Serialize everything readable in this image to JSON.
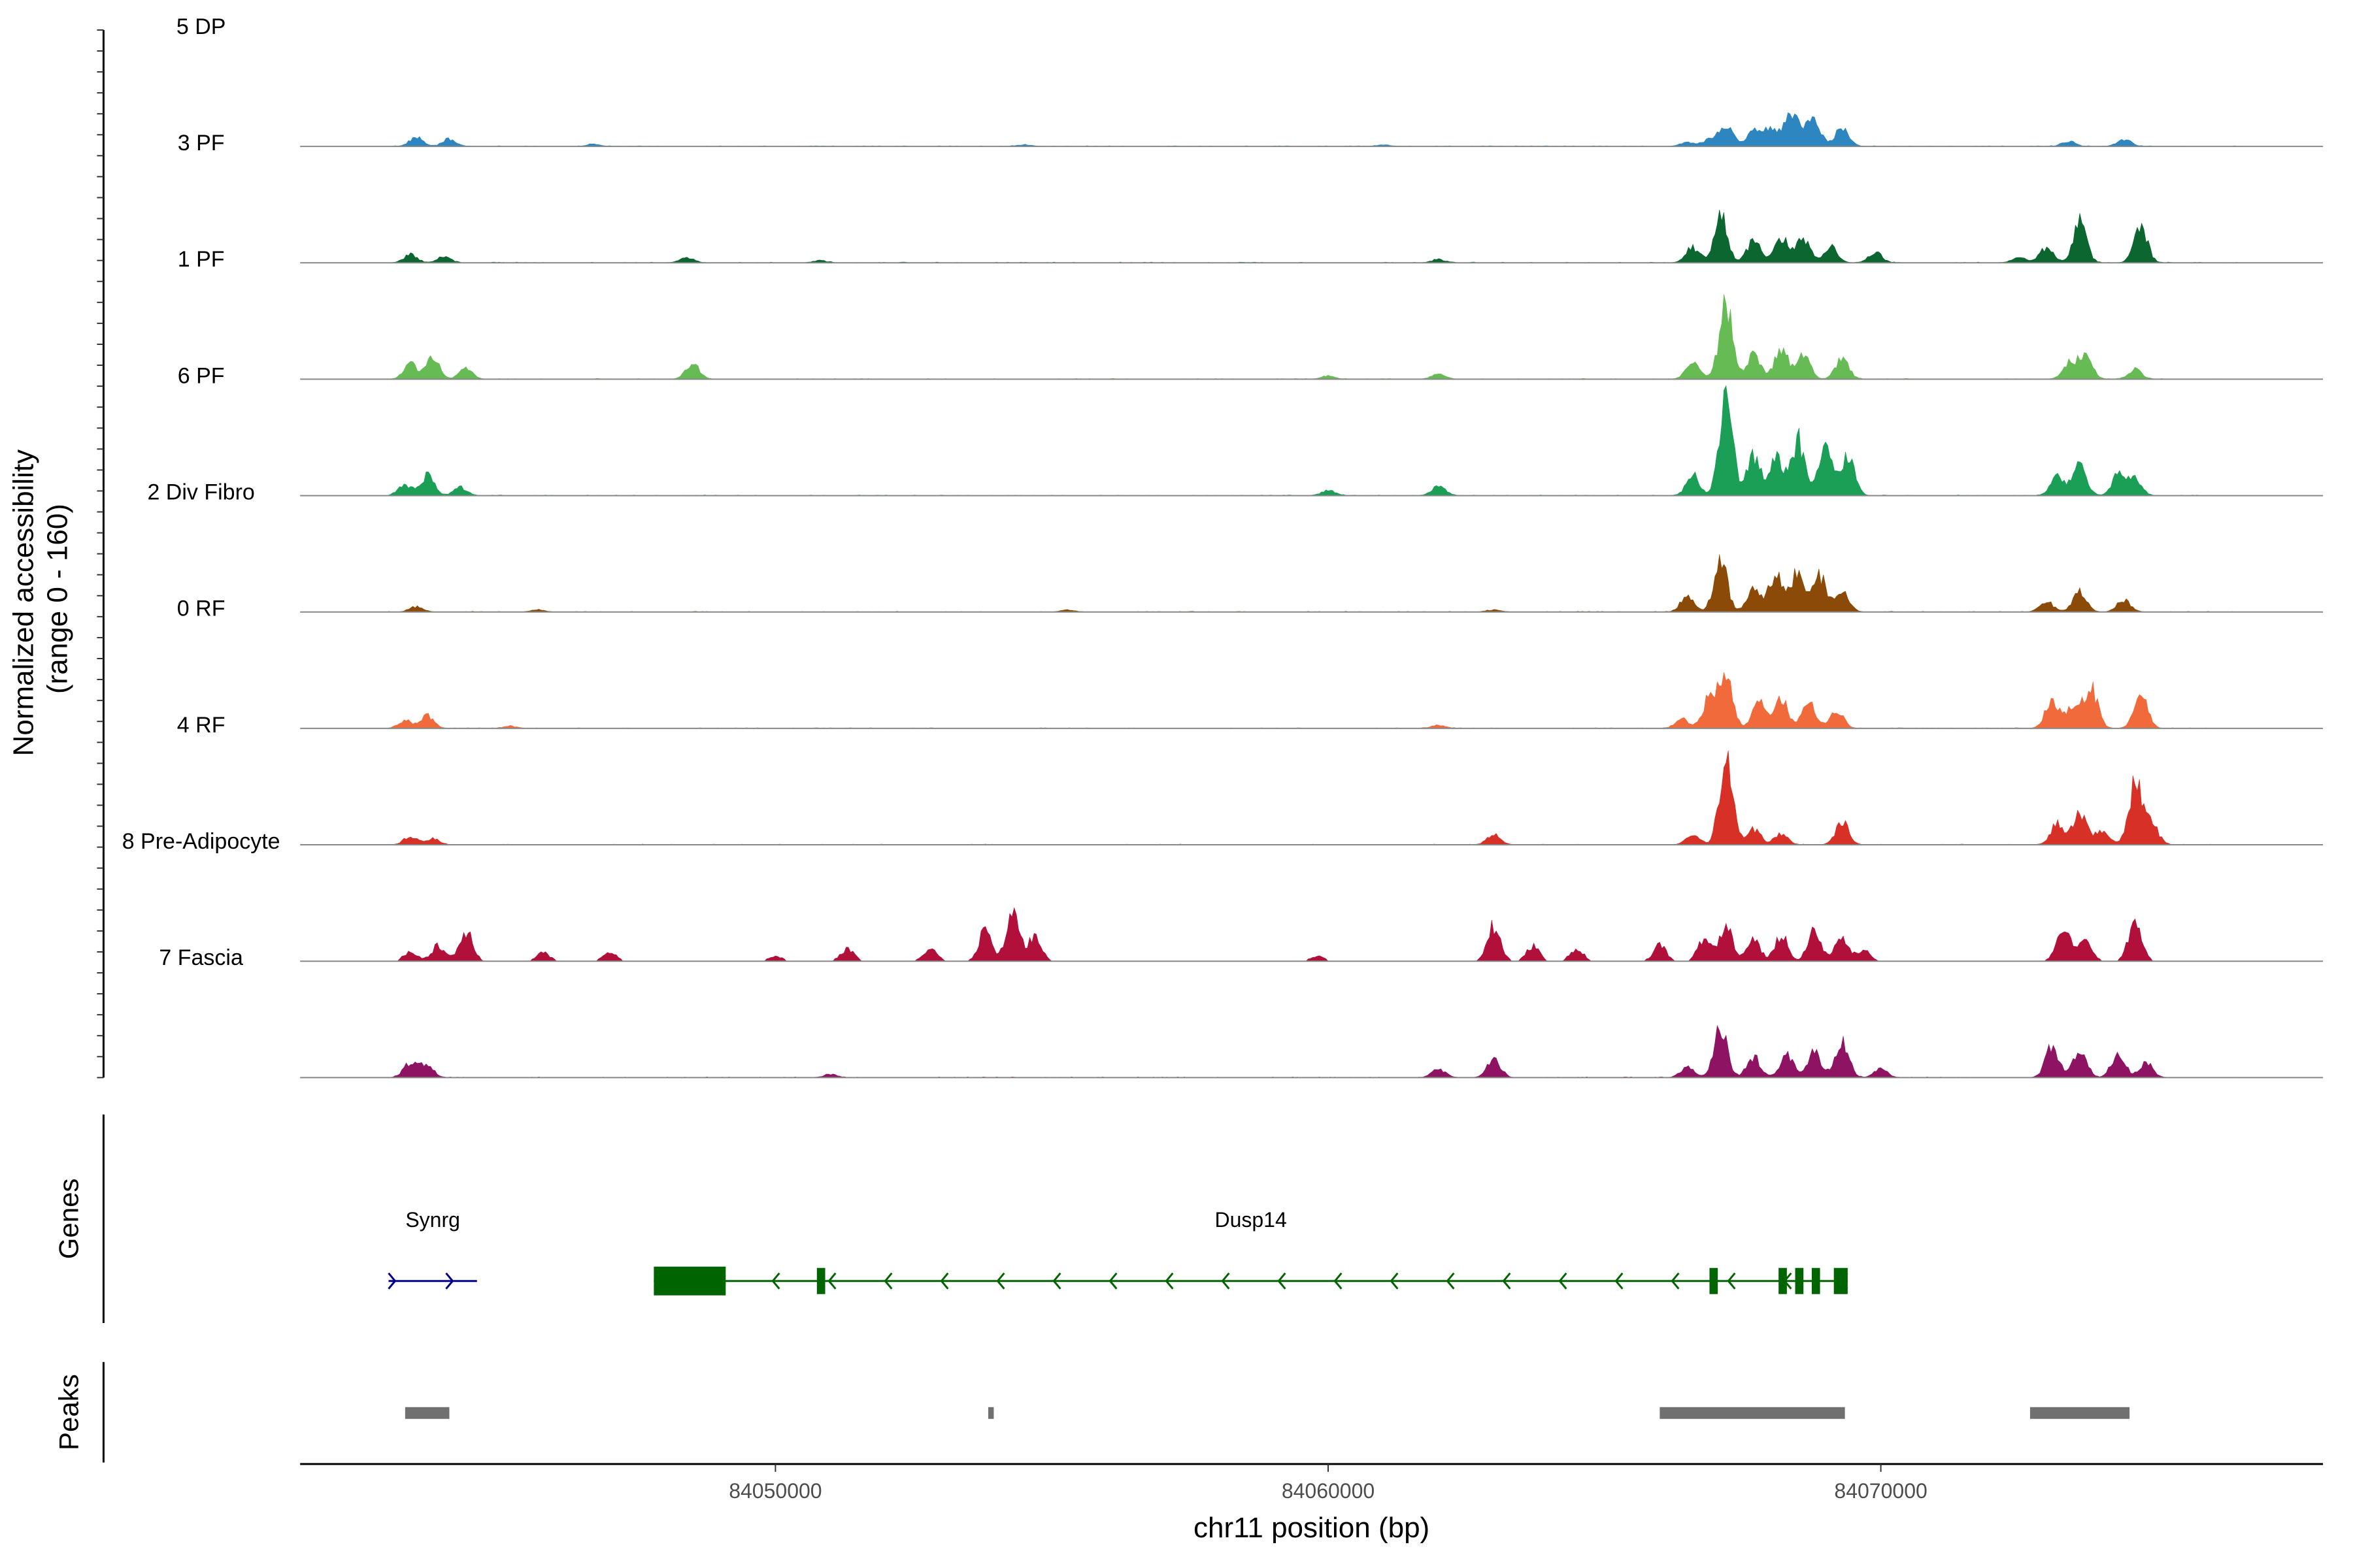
{
  "chart_data": {
    "type": "area",
    "title": "",
    "coverage": {
      "ylabel_line1": "Normalized accessibility",
      "ylabel_line2": "(range 0 - 160)",
      "ylim": [
        0,
        160
      ],
      "tracks": [
        {
          "name": "5 DP",
          "color": "#2E86C1",
          "peaks": [
            [
              84043500,
              9
            ],
            [
              84044100,
              7
            ],
            [
              84046700,
              2
            ],
            [
              84054500,
              1.5
            ],
            [
              84061000,
              1.5
            ],
            [
              84066500,
              4
            ],
            [
              84066900,
              7
            ],
            [
              84067200,
              22
            ],
            [
              84067700,
              14
            ],
            [
              84068000,
              18
            ],
            [
              84068300,
              20
            ],
            [
              84068500,
              22
            ],
            [
              84068800,
              25
            ],
            [
              84069300,
              20
            ],
            [
              84073400,
              5
            ],
            [
              84074400,
              7
            ]
          ]
        },
        {
          "name": "3 PF",
          "color": "#0B6630",
          "peaks": [
            [
              84043400,
              8
            ],
            [
              84044000,
              6
            ],
            [
              84048400,
              5
            ],
            [
              84050800,
              2
            ],
            [
              84062000,
              3
            ],
            [
              84066600,
              15
            ],
            [
              84067100,
              45
            ],
            [
              84067700,
              22
            ],
            [
              84068200,
              25
            ],
            [
              84068600,
              24
            ],
            [
              84069100,
              15
            ],
            [
              84069900,
              10
            ],
            [
              84072500,
              5
            ],
            [
              84073000,
              15
            ],
            [
              84073600,
              40
            ],
            [
              84074700,
              36
            ]
          ]
        },
        {
          "name": "1 PF",
          "color": "#66BB55",
          "peaks": [
            [
              84043400,
              15
            ],
            [
              84043800,
              22
            ],
            [
              84044400,
              10
            ],
            [
              84048500,
              15
            ],
            [
              84060000,
              3
            ],
            [
              84062000,
              5
            ],
            [
              84066600,
              18
            ],
            [
              84067200,
              75
            ],
            [
              84067700,
              25
            ],
            [
              84068200,
              30
            ],
            [
              84068600,
              25
            ],
            [
              84069300,
              20
            ],
            [
              84073400,
              15
            ],
            [
              84073700,
              25
            ],
            [
              84074600,
              10
            ]
          ]
        },
        {
          "name": "6 PF",
          "color": "#1B9E55",
          "peaks": [
            [
              84043300,
              10
            ],
            [
              84043700,
              20
            ],
            [
              84044300,
              8
            ],
            [
              84060000,
              5
            ],
            [
              84062000,
              10
            ],
            [
              84066600,
              20
            ],
            [
              84067200,
              98
            ],
            [
              84067700,
              40
            ],
            [
              84068100,
              40
            ],
            [
              84068500,
              55
            ],
            [
              84069000,
              45
            ],
            [
              84069400,
              40
            ],
            [
              84073200,
              20
            ],
            [
              84073600,
              32
            ],
            [
              84074300,
              20
            ],
            [
              84074600,
              15
            ]
          ]
        },
        {
          "name": "2 Div Fibro",
          "color": "#8B4A08",
          "peaks": [
            [
              84043500,
              5
            ],
            [
              84045700,
              2
            ],
            [
              84055300,
              2
            ],
            [
              84063000,
              2
            ],
            [
              84066500,
              15
            ],
            [
              84067100,
              50
            ],
            [
              84067700,
              22
            ],
            [
              84068100,
              38
            ],
            [
              84068500,
              42
            ],
            [
              84068900,
              35
            ],
            [
              84069300,
              20
            ],
            [
              84073000,
              10
            ],
            [
              84073600,
              20
            ],
            [
              84074400,
              12
            ]
          ]
        },
        {
          "name": "0 RF",
          "color": "#F06A3C",
          "peaks": [
            [
              84043300,
              8
            ],
            [
              84043700,
              12
            ],
            [
              84045200,
              2
            ],
            [
              84062000,
              3
            ],
            [
              84066400,
              10
            ],
            [
              84066900,
              30
            ],
            [
              84067200,
              55
            ],
            [
              84067800,
              25
            ],
            [
              84068200,
              28
            ],
            [
              84068700,
              25
            ],
            [
              84069200,
              18
            ],
            [
              84073100,
              30
            ],
            [
              84073500,
              25
            ],
            [
              84073800,
              40
            ],
            [
              84074700,
              35
            ]
          ]
        },
        {
          "name": "4 RF",
          "color": "#D73027",
          "peaks": [
            [
              84043400,
              8
            ],
            [
              84043800,
              6
            ],
            [
              84063000,
              10
            ],
            [
              84066600,
              10
            ],
            [
              84067200,
              85
            ],
            [
              84067700,
              15
            ],
            [
              84068200,
              10
            ],
            [
              84069300,
              22
            ],
            [
              84073200,
              22
            ],
            [
              84073600,
              30
            ],
            [
              84074000,
              15
            ],
            [
              84074600,
              60
            ],
            [
              84074900,
              20
            ]
          ]
        },
        {
          "name": "8 Pre-Adipocyte",
          "color": "#B0103A",
          "peaks": [
            [
              84043400,
              10
            ],
            [
              84043900,
              15
            ],
            [
              84044400,
              30
            ],
            [
              84045800,
              8
            ],
            [
              84047000,
              10
            ],
            [
              84050000,
              5
            ],
            [
              84051300,
              12
            ],
            [
              84052800,
              12
            ],
            [
              84053800,
              30
            ],
            [
              84054300,
              45
            ],
            [
              84054700,
              25
            ],
            [
              84059800,
              5
            ],
            [
              84063000,
              35
            ],
            [
              84063700,
              15
            ],
            [
              84064500,
              12
            ],
            [
              84066000,
              15
            ],
            [
              84066800,
              20
            ],
            [
              84067200,
              35
            ],
            [
              84067700,
              20
            ],
            [
              84068200,
              25
            ],
            [
              84068800,
              30
            ],
            [
              84069300,
              25
            ],
            [
              84069700,
              10
            ],
            [
              84073300,
              35
            ],
            [
              84073700,
              20
            ],
            [
              84074600,
              40
            ]
          ]
        },
        {
          "name": "7 Fascia",
          "color": "#8E1363",
          "peaks": [
            [
              84043400,
              15
            ],
            [
              84043700,
              12
            ],
            [
              84051000,
              3
            ],
            [
              84062000,
              8
            ],
            [
              84063000,
              18
            ],
            [
              84066500,
              10
            ],
            [
              84067100,
              50
            ],
            [
              84067700,
              20
            ],
            [
              84068300,
              22
            ],
            [
              84068800,
              25
            ],
            [
              84069300,
              35
            ],
            [
              84070000,
              8
            ],
            [
              84073100,
              30
            ],
            [
              84073600,
              28
            ],
            [
              84074300,
              25
            ],
            [
              84074800,
              15
            ]
          ]
        }
      ]
    },
    "genes": {
      "title": "Genes",
      "items": [
        {
          "name": "Synrg",
          "start": 84043000,
          "end": 84044600,
          "strand": "+",
          "color": "#00008B",
          "exons": []
        },
        {
          "name": "Dusp14",
          "start": 84047800,
          "end": 84069400,
          "strand": "-",
          "color": "#006400",
          "exons": [
            [
              84047800,
              84049100
            ],
            [
              84050750,
              84050900
            ],
            [
              84066900,
              84067050
            ],
            [
              84068150,
              84068300
            ],
            [
              84068450,
              84068600
            ],
            [
              84068750,
              84068900
            ],
            [
              84069150,
              84069400
            ]
          ]
        }
      ]
    },
    "peaks_track": {
      "title": "Peaks",
      "color": "#707070",
      "regions": [
        [
          84043300,
          84044100
        ],
        [
          84053850,
          84053950
        ],
        [
          84066000,
          84069350
        ],
        [
          84072700,
          84074500
        ]
      ]
    },
    "x_axis": {
      "label": "chr11 position (bp)",
      "range": [
        84041400,
        84078000
      ],
      "ticks": [
        84050000,
        84060000,
        84070000
      ],
      "tick_labels": [
        "84050000",
        "84060000",
        "84070000"
      ]
    }
  }
}
